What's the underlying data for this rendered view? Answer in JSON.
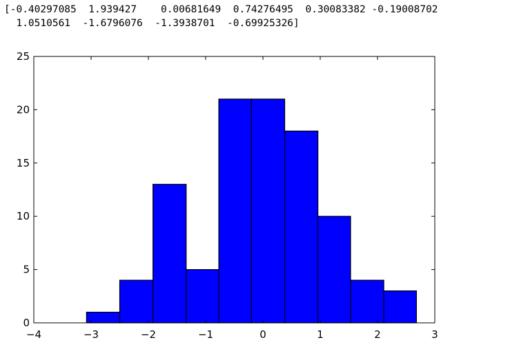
{
  "output": {
    "line1": "[-0.40297085  1.939427    0.00681649  0.74276495  0.30083382 -0.19008702",
    "line2": "  1.0510561  -1.6796076  -1.3938701  -0.69925326]"
  },
  "chart_data": {
    "type": "bar",
    "title": "",
    "xlabel": "",
    "ylabel": "",
    "bin_edges": [
      -3.08,
      -2.5,
      -1.92,
      -1.34,
      -0.77,
      -0.2,
      0.38,
      0.96,
      1.53,
      2.11,
      2.68
    ],
    "values": [
      1,
      4,
      13,
      5,
      21,
      21,
      18,
      10,
      4,
      3
    ],
    "xlim": [
      -4,
      3
    ],
    "ylim": [
      0,
      25
    ],
    "xticks": [
      -4,
      -3,
      -2,
      -1,
      0,
      1,
      2,
      3
    ],
    "xtick_labels": [
      "−4",
      "−3",
      "−2",
      "−1",
      "0",
      "1",
      "2",
      "3"
    ],
    "yticks": [
      0,
      5,
      10,
      15,
      20,
      25
    ],
    "ytick_labels": [
      "0",
      "5",
      "10",
      "15",
      "20",
      "25"
    ],
    "grid": false,
    "bar_color": "#0000ff",
    "edge_color": "#000000"
  }
}
